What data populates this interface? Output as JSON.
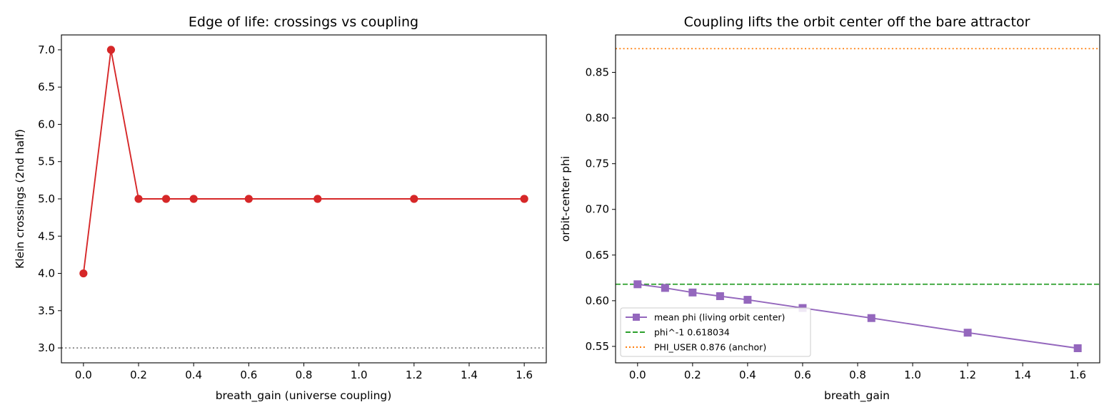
{
  "chart_data": [
    {
      "type": "line",
      "title": "Edge of life: crossings vs coupling",
      "xlabel": "breath_gain (universe coupling)",
      "ylabel": "Klein crossings (2nd half)",
      "xlim": [
        -0.08,
        1.68
      ],
      "ylim": [
        2.8,
        7.2
      ],
      "xticks": [
        "0.0",
        "0.2",
        "0.4",
        "0.6",
        "0.8",
        "1.0",
        "1.2",
        "1.4",
        "1.6"
      ],
      "yticks": [
        "3.0",
        "3.5",
        "4.0",
        "4.5",
        "5.0",
        "5.5",
        "6.0",
        "6.5",
        "7.0"
      ],
      "grid": false,
      "series": [
        {
          "color": "#d62728",
          "marker": "circle",
          "x": [
            0.0,
            0.1,
            0.2,
            0.3,
            0.4,
            0.6,
            0.85,
            1.2,
            1.6
          ],
          "y": [
            4,
            7,
            5,
            5,
            5,
            5,
            5,
            5,
            5
          ]
        }
      ],
      "hlines": [
        {
          "y": 3.0,
          "color": "#7f7f7f",
          "style": "dotted"
        }
      ]
    },
    {
      "type": "line",
      "title": "Coupling lifts the orbit center off the bare attractor",
      "xlabel": "breath_gain",
      "ylabel": "orbit-center phi",
      "xlim": [
        -0.08,
        1.68
      ],
      "ylim": [
        0.532,
        0.891
      ],
      "xticks": [
        "0.0",
        "0.2",
        "0.4",
        "0.6",
        "0.8",
        "1.0",
        "1.2",
        "1.4",
        "1.6"
      ],
      "yticks": [
        "0.55",
        "0.60",
        "0.65",
        "0.70",
        "0.75",
        "0.80",
        "0.85"
      ],
      "grid": false,
      "legend_position": "lower-left",
      "series": [
        {
          "name": "mean phi (living orbit center)",
          "color": "#9467bd",
          "marker": "square",
          "x": [
            0.0,
            0.1,
            0.2,
            0.3,
            0.4,
            0.6,
            0.85,
            1.2,
            1.6
          ],
          "y": [
            0.618,
            0.614,
            0.609,
            0.605,
            0.601,
            0.592,
            0.581,
            0.565,
            0.548
          ]
        }
      ],
      "hlines": [
        {
          "name": "phi^-1 0.618034",
          "y": 0.618034,
          "color": "#2ca02c",
          "style": "dashed"
        },
        {
          "name": "PHI_USER 0.876 (anchor)",
          "y": 0.876,
          "color": "#ff7f0e",
          "style": "dotted"
        }
      ]
    }
  ]
}
